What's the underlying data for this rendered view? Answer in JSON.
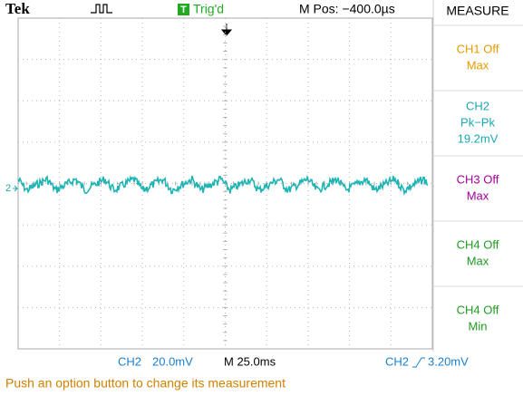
{
  "header": {
    "brand": "Tek",
    "trigger_badge": "T",
    "trigger_status": "Trig'd",
    "position": "M Pos: −400.0µs",
    "menu_title": "MEASURE"
  },
  "menu": [
    {
      "lines": [
        "CH1 Off",
        "Max"
      ],
      "color": "#e89a00"
    },
    {
      "lines": [
        "CH2",
        "Pk−Pk",
        "19.2mV"
      ],
      "color": "#1aa8b0"
    },
    {
      "lines": [
        "CH3 Off",
        "Max"
      ],
      "color": "#a0009a"
    },
    {
      "lines": [
        "CH4 Off",
        "Max"
      ],
      "color": "#1f9a1f"
    },
    {
      "lines": [
        "CH4 Off",
        "Min"
      ],
      "color": "#1f9a1f"
    }
  ],
  "channel_marker": "2",
  "footer": {
    "ch_label": "CH2",
    "scale": "20.0mV",
    "timebase": "M 25.0ms",
    "trigger_source": "CH2",
    "trigger_level": "3.20mV"
  },
  "message": "Push an option button to change its measurement"
}
